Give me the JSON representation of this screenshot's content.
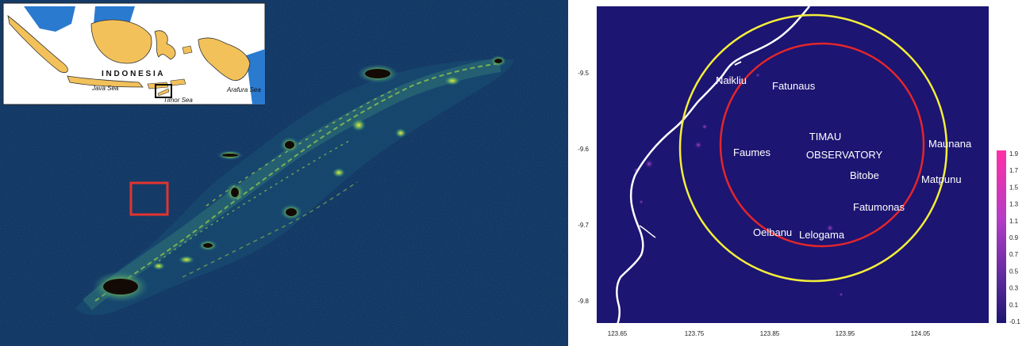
{
  "left_map": {
    "inset": {
      "country_label": "I N D O N E S I A",
      "seas": [
        "Java Sea",
        "Timor Sea",
        "Arafura Sea"
      ]
    },
    "colors": {
      "background": "#0c2a57",
      "lights_low": "#1e6f88",
      "lights_mid": "#69b05a",
      "lights_high": "#f3e24a",
      "urban_core": "#140a05",
      "highlight_box": "#e2342f"
    }
  },
  "right_map": {
    "labels": {
      "observatory_line1": "TIMAU",
      "observatory_line2": "OBSERVATORY",
      "towns": [
        {
          "name": "Naikliu"
        },
        {
          "name": "Fatunaus"
        },
        {
          "name": "Faumes"
        },
        {
          "name": "Maunana"
        },
        {
          "name": "Bitobe"
        },
        {
          "name": "Matpunu"
        },
        {
          "name": "Fatumonas"
        },
        {
          "name": "Oelbanu"
        },
        {
          "name": "Lelogama"
        }
      ]
    },
    "x_ticks": [
      "123.65",
      "123.75",
      "123.85",
      "123.95",
      "124.05"
    ],
    "y_ticks": [
      "-9.5",
      "-9.6",
      "-9.7",
      "-9.8"
    ],
    "colorbar_ticks": [
      "1.9",
      "1.7",
      "1.5",
      "1.3",
      "1.1",
      "0.9",
      "0.7",
      "0.5",
      "0.3",
      "0.1",
      "-0.1"
    ],
    "colors": {
      "background": "#1c1572",
      "coastline": "#ffffff",
      "outer_circle": "#f4ee3a",
      "inner_circle": "#e3262b",
      "colorbar_top": "#ff2fa6",
      "colorbar_bottom": "#1c1572"
    }
  }
}
